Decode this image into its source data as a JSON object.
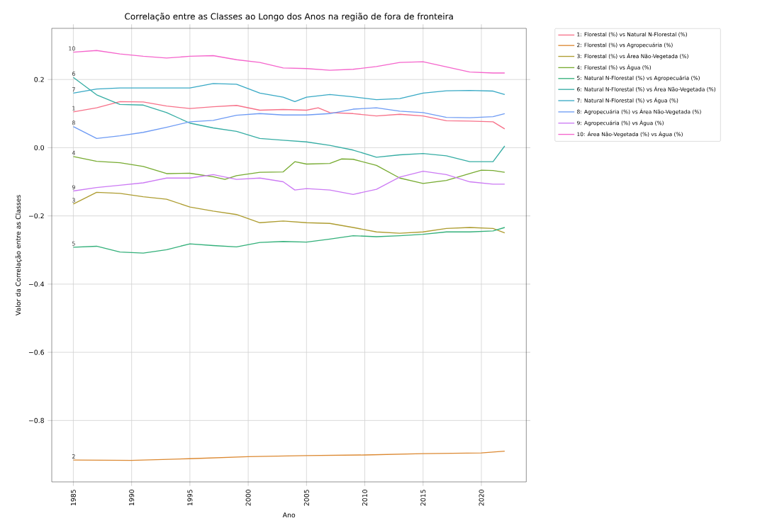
{
  "chart_data": {
    "type": "line",
    "title": "Correlação entre as Classes ao Longo dos Anos na região de fora de fronteira",
    "xlabel": "Ano",
    "ylabel": "Valor da Correlação entre as Classes",
    "xlim": [
      1983.15,
      2023.85
    ],
    "ylim": [
      -0.98,
      0.35
    ],
    "xticks": [
      1985,
      1990,
      1995,
      2000,
      2005,
      2010,
      2015,
      2020
    ],
    "yticks": [
      {
        "value": -0.8,
        "label": "−0.8"
      },
      {
        "value": -0.6,
        "label": "−0.6"
      },
      {
        "value": -0.4,
        "label": "−0.4"
      },
      {
        "value": -0.2,
        "label": "−0.2"
      },
      {
        "value": 0,
        "label": "0.0"
      },
      {
        "value": 0.2,
        "label": "0.2"
      }
    ],
    "grid": true,
    "legend": "top right",
    "series": [
      {
        "name": "1: Florestal (%) vs Natural N-Florestal (%)",
        "color": "#f77189",
        "x": [
          1985,
          1987,
          1989,
          1991,
          1993,
          1995,
          1997,
          1999,
          2001,
          2003,
          2005,
          2006,
          2007,
          2009,
          2011,
          2013,
          2015,
          2017,
          2019,
          2021,
          2022
        ],
        "values": [
          0.105,
          0.117,
          0.135,
          0.134,
          0.122,
          0.115,
          0.12,
          0.124,
          0.11,
          0.112,
          0.11,
          0.117,
          0.103,
          0.1,
          0.093,
          0.098,
          0.093,
          0.079,
          0.078,
          0.076,
          0.055
        ]
      },
      {
        "name": "2: Florestal (%) vs Agropecuária (%)",
        "color": "#dc8932",
        "x": [
          1985,
          1990,
          1995,
          2000,
          2005,
          2010,
          2015,
          2020,
          2022
        ],
        "values": [
          -0.916,
          -0.917,
          -0.912,
          -0.906,
          -0.903,
          -0.901,
          -0.897,
          -0.895,
          -0.89
        ]
      },
      {
        "name": "3: Florestal (%) vs Área Não-Vegetada (%)",
        "color": "#ae9d31",
        "x": [
          1985,
          1987,
          1989,
          1991,
          1993,
          1995,
          1997,
          1999,
          2001,
          2003,
          2005,
          2007,
          2009,
          2011,
          2013,
          2015,
          2017,
          2019,
          2021,
          2022
        ],
        "values": [
          -0.165,
          -0.131,
          -0.134,
          -0.144,
          -0.151,
          -0.174,
          -0.186,
          -0.196,
          -0.22,
          -0.215,
          -0.22,
          -0.222,
          -0.234,
          -0.247,
          -0.251,
          -0.247,
          -0.237,
          -0.234,
          -0.237,
          -0.25
        ]
      },
      {
        "name": "4: Florestal (%) vs Água (%)",
        "color": "#77ab31",
        "x": [
          1985,
          1987,
          1989,
          1991,
          1993,
          1995,
          1997,
          1998,
          1999,
          2001,
          2003,
          2004,
          2005,
          2007,
          2008,
          2009,
          2011,
          2013,
          2015,
          2017,
          2019,
          2020,
          2021,
          2022
        ],
        "values": [
          -0.026,
          -0.04,
          -0.044,
          -0.055,
          -0.076,
          -0.075,
          -0.085,
          -0.093,
          -0.082,
          -0.072,
          -0.071,
          -0.041,
          -0.048,
          -0.046,
          -0.033,
          -0.034,
          -0.052,
          -0.089,
          -0.105,
          -0.096,
          -0.076,
          -0.066,
          -0.067,
          -0.072
        ]
      },
      {
        "name": "5: Natural N-Florestal (%) vs Agropecuária (%)",
        "color": "#33b07a",
        "x": [
          1985,
          1987,
          1989,
          1991,
          1993,
          1995,
          1997,
          1999,
          2001,
          2003,
          2005,
          2007,
          2009,
          2011,
          2013,
          2015,
          2017,
          2019,
          2021,
          2022
        ],
        "values": [
          -0.292,
          -0.289,
          -0.306,
          -0.309,
          -0.299,
          -0.282,
          -0.287,
          -0.291,
          -0.278,
          -0.275,
          -0.277,
          -0.268,
          -0.258,
          -0.261,
          -0.258,
          -0.254,
          -0.247,
          -0.247,
          -0.244,
          -0.234
        ]
      },
      {
        "name": "6: Natural N-Florestal (%) vs Área Não-Vegetada (%)",
        "color": "#36ada4",
        "x": [
          1985,
          1987,
          1989,
          1991,
          1993,
          1995,
          1997,
          1999,
          2001,
          2003,
          2005,
          2007,
          2009,
          2011,
          2013,
          2015,
          2017,
          2019,
          2021,
          2022
        ],
        "values": [
          0.206,
          0.155,
          0.127,
          0.125,
          0.103,
          0.072,
          0.058,
          0.048,
          0.027,
          0.022,
          0.017,
          0.007,
          -0.007,
          -0.028,
          -0.021,
          -0.017,
          -0.024,
          -0.041,
          -0.041,
          0.005
        ]
      },
      {
        "name": "7: Natural N-Florestal (%) vs Água (%)",
        "color": "#38a9c5",
        "x": [
          1985,
          1987,
          1989,
          1991,
          1993,
          1995,
          1997,
          1999,
          2001,
          2003,
          2004,
          2005,
          2007,
          2009,
          2011,
          2013,
          2015,
          2017,
          2019,
          2021,
          2022
        ],
        "values": [
          0.16,
          0.172,
          0.175,
          0.175,
          0.175,
          0.175,
          0.188,
          0.186,
          0.16,
          0.148,
          0.135,
          0.148,
          0.156,
          0.149,
          0.141,
          0.144,
          0.16,
          0.167,
          0.168,
          0.166,
          0.156
        ]
      },
      {
        "name": "8: Agropecuária (%) vs Área Não-Vegetada (%)",
        "color": "#6e9bf4",
        "x": [
          1985,
          1987,
          1989,
          1991,
          1993,
          1995,
          1997,
          1999,
          2001,
          2003,
          2005,
          2007,
          2009,
          2011,
          2013,
          2015,
          2017,
          2019,
          2021,
          2022
        ],
        "values": [
          0.062,
          0.027,
          0.035,
          0.045,
          0.06,
          0.076,
          0.08,
          0.095,
          0.1,
          0.096,
          0.096,
          0.1,
          0.113,
          0.117,
          0.107,
          0.103,
          0.089,
          0.088,
          0.091,
          0.1
        ]
      },
      {
        "name": "9: Agropecuária (%) vs Água (%)",
        "color": "#cc7af4",
        "x": [
          1985,
          1987,
          1989,
          1991,
          1993,
          1995,
          1997,
          1999,
          2001,
          2003,
          2004,
          2005,
          2007,
          2009,
          2011,
          2013,
          2015,
          2017,
          2019,
          2021,
          2022
        ],
        "values": [
          -0.127,
          -0.117,
          -0.11,
          -0.103,
          -0.089,
          -0.089,
          -0.079,
          -0.093,
          -0.089,
          -0.1,
          -0.124,
          -0.12,
          -0.124,
          -0.137,
          -0.122,
          -0.086,
          -0.069,
          -0.079,
          -0.1,
          -0.107,
          -0.107
        ]
      },
      {
        "name": "10: Área Não-Vegetada (%) vs Água (%)",
        "color": "#f565cc",
        "x": [
          1985,
          1987,
          1989,
          1991,
          1993,
          1995,
          1997,
          1999,
          2001,
          2003,
          2005,
          2007,
          2009,
          2011,
          2013,
          2015,
          2017,
          2019,
          2021,
          2022
        ],
        "values": [
          0.28,
          0.285,
          0.275,
          0.268,
          0.263,
          0.268,
          0.27,
          0.258,
          0.25,
          0.234,
          0.232,
          0.227,
          0.23,
          0.238,
          0.25,
          0.252,
          0.237,
          0.222,
          0.219,
          0.219
        ]
      }
    ],
    "annotations": [
      "1",
      "2",
      "3",
      "4",
      "5",
      "6",
      "7",
      "8",
      "9",
      "10"
    ]
  }
}
